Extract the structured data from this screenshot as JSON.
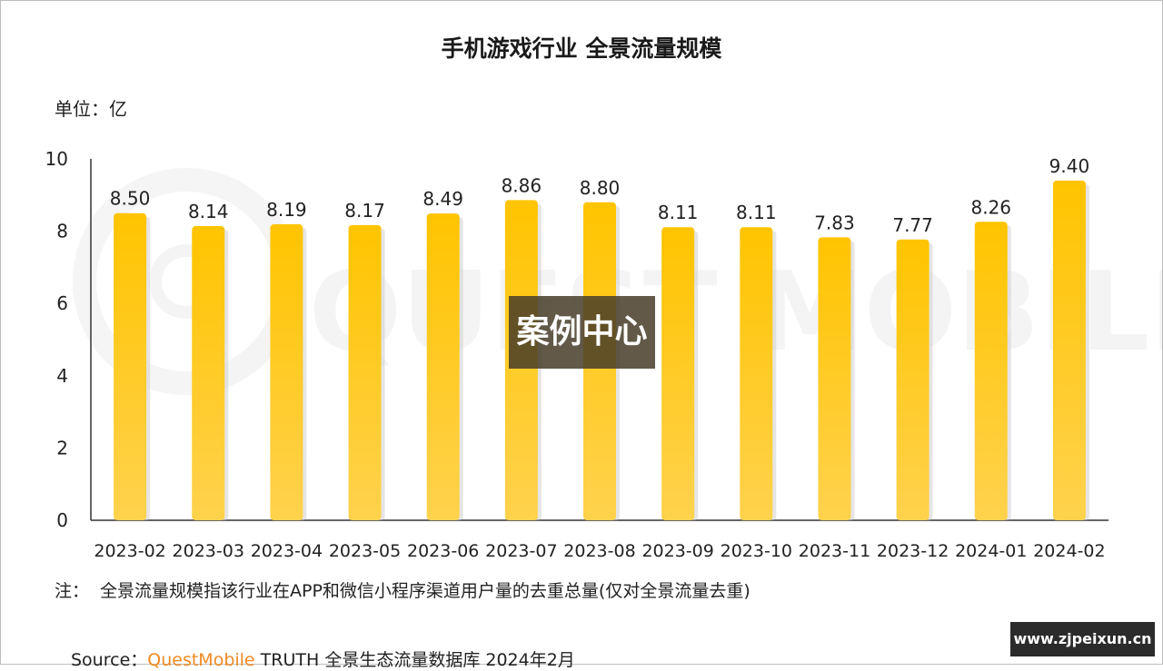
{
  "chart_data": {
    "type": "bar",
    "title": "手机游戏行业 全景流量规模",
    "unit_label": "单位：亿",
    "categories": [
      "2023-02",
      "2023-03",
      "2023-04",
      "2023-05",
      "2023-06",
      "2023-07",
      "2023-08",
      "2023-09",
      "2023-10",
      "2023-11",
      "2023-12",
      "2024-01",
      "2024-02"
    ],
    "values": [
      8.5,
      8.14,
      8.19,
      8.17,
      8.49,
      8.86,
      8.8,
      8.11,
      8.11,
      7.83,
      7.77,
      8.26,
      9.4
    ],
    "data_labels": [
      "8.50",
      "8.14",
      "8.19",
      "8.17",
      "8.49",
      "8.86",
      "8.80",
      "8.11",
      "8.11",
      "7.83",
      "7.77",
      "8.26",
      "9.40"
    ],
    "ylim": [
      0,
      10
    ],
    "yticks": [
      "0",
      "2",
      "4",
      "6",
      "8",
      "10"
    ],
    "grid": false,
    "bar_color_top": "#ffc400",
    "bar_color_bottom": "#ffd24d"
  },
  "note": {
    "label": "注：",
    "text": "全景流量规模指该行业在APP和微信小程序渠道用户量的去重总量(仅对全景流量去重)"
  },
  "source": {
    "prefix": "Source：",
    "brand": "QuestMobile",
    "suffix": " TRUTH 全景生态流量数据库 2024年2月"
  },
  "watermark": {
    "overlay_text": "案例中心",
    "background_text": "QUEST MOBILE",
    "site_badge": "www.zjpeixun.cn"
  }
}
